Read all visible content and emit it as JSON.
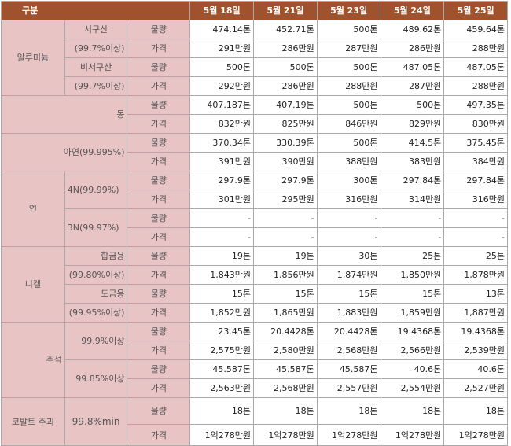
{
  "header": {
    "category": "구분",
    "dates": [
      "5월 18일",
      "5월 21일",
      "5월 23일",
      "5월 24일",
      "5월 25일"
    ]
  },
  "labels": {
    "volume": "물량",
    "price": "가격",
    "aluminum": "알루미늄",
    "western": "서구산",
    "western_grade": "(99.7%이상)",
    "nonwestern": "비서구산",
    "nonwestern_grade": "(99.7%이상)",
    "copper": "동",
    "zinc": "아연(99.995%)",
    "lead": "연",
    "lead_4n": "4N(99.99%)",
    "lead_3n": "3N(99.97%)",
    "nickel": "니켈",
    "alloy": "합금용",
    "alloy_grade": "(99.80%이상)",
    "plating": "도금용",
    "plating_grade": "(99.95%이상)",
    "tin": "주석",
    "tin_999": "99.9%이상",
    "tin_9985": "99.85%이상",
    "cobalt": "코발트 주괴",
    "cobalt_grade": "99.8%min"
  },
  "rows": {
    "al_west_vol": [
      "474.14톤",
      "452.71톤",
      "500톤",
      "489.62톤",
      "459.64톤"
    ],
    "al_west_price": [
      "291만원",
      "286만원",
      "287만원",
      "286만원",
      "288만원"
    ],
    "al_nonwest_vol": [
      "500톤",
      "500톤",
      "500톤",
      "487.05톤",
      "487.05톤"
    ],
    "al_nonwest_price": [
      "292만원",
      "286만원",
      "288만원",
      "287만원",
      "288만원"
    ],
    "cu_vol": [
      "407.187톤",
      "407.19톤",
      "500톤",
      "500톤",
      "497.35톤"
    ],
    "cu_price": [
      "832만원",
      "825만원",
      "846만원",
      "829만원",
      "830만원"
    ],
    "zn_vol": [
      "370.34톤",
      "330.39톤",
      "500톤",
      "414.5톤",
      "375.45톤"
    ],
    "zn_price": [
      "391만원",
      "390만원",
      "388만원",
      "383만원",
      "384만원"
    ],
    "pb4_vol": [
      "297.9톤",
      "297.9톤",
      "300톤",
      "297.84톤",
      "297.84톤"
    ],
    "pb4_price": [
      "301만원",
      "295만원",
      "316만원",
      "314만원",
      "316만원"
    ],
    "pb3_vol": [
      "-",
      "-",
      "-",
      "-",
      "-"
    ],
    "pb3_price": [
      "-",
      "-",
      "-",
      "-",
      "-"
    ],
    "ni_alloy_vol": [
      "19톤",
      "19톤",
      "30톤",
      "25톤",
      "25톤"
    ],
    "ni_alloy_price": [
      "1,843만원",
      "1,856만원",
      "1,874만원",
      "1,850만원",
      "1,878만원"
    ],
    "ni_plat_vol": [
      "15톤",
      "15톤",
      "15톤",
      "15톤",
      "13톤"
    ],
    "ni_plat_price": [
      "1,852만원",
      "1,865만원",
      "1,883만원",
      "1,859만원",
      "1,887만원"
    ],
    "sn999_vol": [
      "23.45톤",
      "20.4428톤",
      "20.4428톤",
      "19.4368톤",
      "19.4368톤"
    ],
    "sn999_price": [
      "2,575만원",
      "2,580만원",
      "2,568만원",
      "2,566만원",
      "2,539만원"
    ],
    "sn9985_vol": [
      "45.587톤",
      "45.587톤",
      "45.587톤",
      "40.6톤",
      "40.6톤"
    ],
    "sn9985_price": [
      "2,563만원",
      "2,568만원",
      "2,557만원",
      "2,554만원",
      "2,527만원"
    ],
    "co_vol": [
      "18톤",
      "18톤",
      "18톤",
      "18톤",
      "18톤"
    ],
    "co_price": [
      "1억278만원",
      "1억278만원",
      "1억278만원",
      "1억278만원",
      "1억278만원"
    ]
  }
}
